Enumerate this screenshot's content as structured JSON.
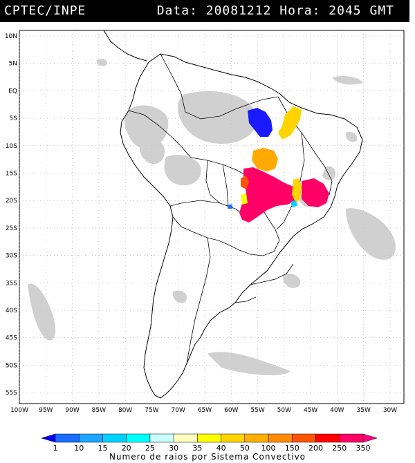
{
  "header": {
    "source": "CPTEC/INPE",
    "datetime": "Data: 20081212 Hora: 2045 GMT"
  },
  "map": {
    "lat_ticks": [
      "10N",
      "5N",
      "EQ",
      "5S",
      "10S",
      "15S",
      "20S",
      "25S",
      "30S",
      "35S",
      "40S",
      "45S",
      "50S",
      "55S"
    ],
    "lon_ticks": [
      "100W",
      "95W",
      "90W",
      "85W",
      "80W",
      "75W",
      "70W",
      "65W",
      "60W",
      "55W",
      "50W",
      "45W",
      "40W",
      "35W",
      "30W"
    ]
  },
  "legend": {
    "labels": [
      "1",
      "10",
      "15",
      "20",
      "25",
      "30",
      "35",
      "40",
      "50",
      "100",
      "150",
      "200",
      "250",
      "350"
    ],
    "colors": [
      "#0000ff",
      "#1a6dff",
      "#1fa5ff",
      "#00d2ff",
      "#00ffff",
      "#c8ffff",
      "#ffffc0",
      "#ffff00",
      "#ffd400",
      "#ffb000",
      "#ff8c00",
      "#ff5500",
      "#ff0000",
      "#ff0066",
      "#ff0080"
    ],
    "title": "Numero de raios por Sistema Convectivo"
  },
  "colors": {
    "cloud": "#c8c8c8",
    "blue_cell": "#1a1aff",
    "yellow_cell": "#ffd400",
    "orange_cell": "#ffaa00",
    "magenta_cell": "#ff0066"
  }
}
